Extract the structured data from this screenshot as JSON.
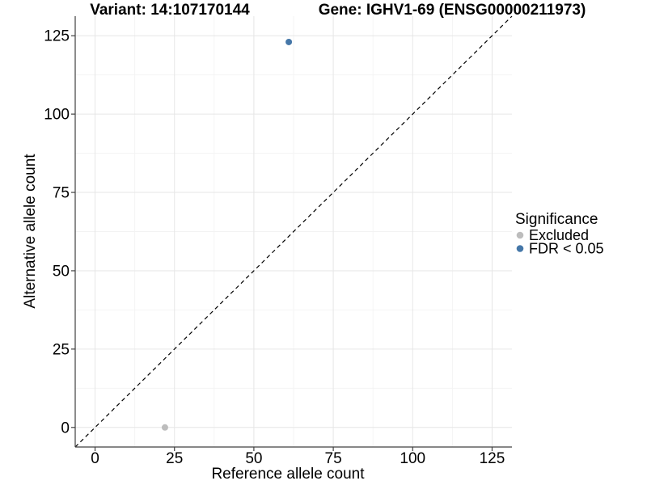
{
  "chart_data": {
    "type": "scatter",
    "title_left": "Variant: 14:107170144",
    "title_right": "Gene: IGHV1-69 (ENSG00000211973)",
    "xlabel": "Reference allele count",
    "ylabel": "Alternative allele count",
    "x_ticks": [
      0,
      25,
      50,
      75,
      100,
      125
    ],
    "y_ticks": [
      0,
      25,
      50,
      75,
      100,
      125
    ],
    "xlim": [
      -6.25,
      131.25
    ],
    "ylim": [
      -6.25,
      131.25
    ],
    "grid": "major-and-minor",
    "identity_line": {
      "equation": "y = x",
      "style": "dashed",
      "color": "#000000"
    },
    "legend": {
      "title": "Significance",
      "position": "right"
    },
    "series": [
      {
        "name": "Excluded",
        "color": "#bdbdbd",
        "points": [
          {
            "x": 22,
            "y": 0
          }
        ]
      },
      {
        "name": "FDR < 0.05",
        "color": "#4577a8",
        "points": [
          {
            "x": 61,
            "y": 123
          }
        ]
      }
    ]
  },
  "colors": {
    "background": "#ffffff",
    "axis_line": "#404040",
    "grid_major": "#e6e6e6",
    "grid_minor": "#f3f3f3",
    "tick_text": "#000000"
  }
}
